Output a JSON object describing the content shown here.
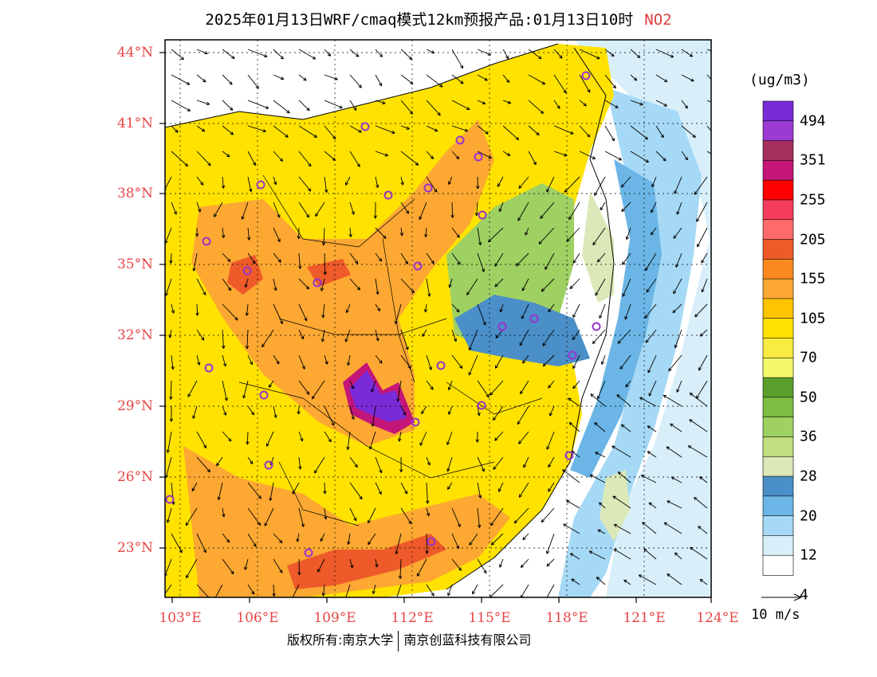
{
  "title": {
    "main": "2025年01月13日WRF/cmaq模式12km预报产品:01月13日10时",
    "species": "NO2"
  },
  "lat_labels": [
    "44°N",
    "41°N",
    "38°N",
    "35°N",
    "32°N",
    "29°N",
    "26°N",
    "23°N"
  ],
  "lon_labels": [
    "103°E",
    "106°E",
    "109°E",
    "112°E",
    "115°E",
    "118°E",
    "121°E",
    "124°E"
  ],
  "colorbar": {
    "unit": "(ug/m3)",
    "colors": [
      "#ffffff",
      "#d8effa",
      "#a6d9f5",
      "#6bb6e6",
      "#4a8fc8",
      "#dbe8b8",
      "#c1df7e",
      "#9fd062",
      "#7cbe45",
      "#5a9e2c",
      "#f3f76a",
      "#f9ec40",
      "#ffe200",
      "#ffc400",
      "#fca832",
      "#fb8a1e",
      "#ee5a29",
      "#ff6a6a",
      "#f53c5d",
      "#ff0000",
      "#c41578",
      "#a62e5c",
      "#9b3bd2",
      "#7a2bd8"
    ],
    "labels": [
      "4",
      "12",
      "20",
      "28",
      "36",
      "50",
      "70",
      "105",
      "155",
      "205",
      "255",
      "351",
      "494"
    ]
  },
  "wind_reference": {
    "label": "10 m/s"
  },
  "footer": {
    "left": "版权所有:南京大学",
    "right": "南京创蓝科技有限公司"
  }
}
